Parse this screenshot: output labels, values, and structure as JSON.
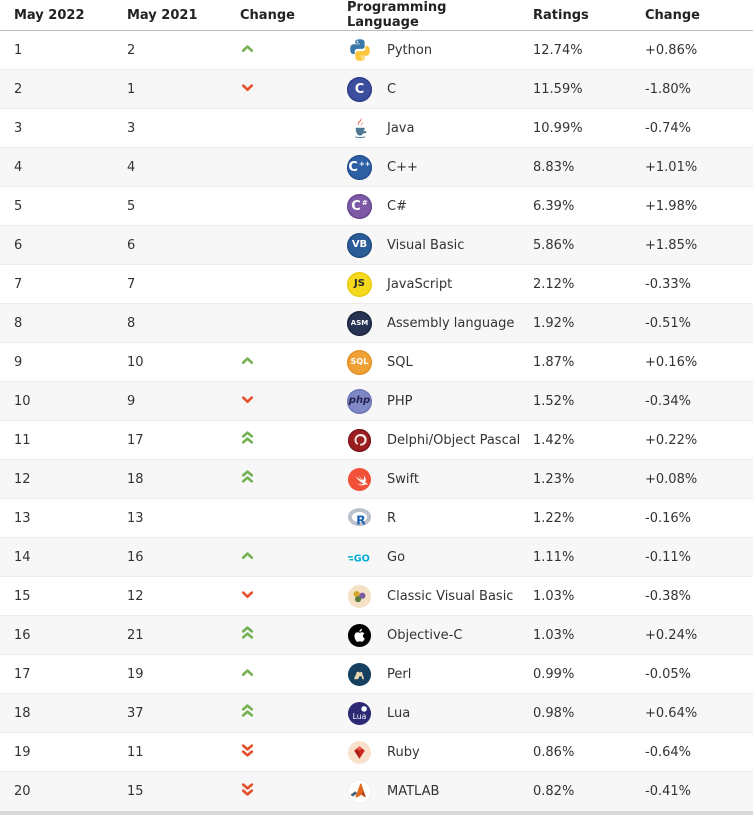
{
  "colors": {
    "arrow_up": "#74b152",
    "arrow_down": "#e2512c",
    "row_alt_bg": "#f7f7f7",
    "header_border": "#bdbdbd"
  },
  "table": {
    "columns": [
      "May 2022",
      "May 2021",
      "Change",
      "Programming Language",
      "Ratings",
      "Change"
    ],
    "rows": [
      {
        "rank_may_2022": "1",
        "rank_may_2021": "2",
        "change_arrow": "up",
        "icon": "python",
        "language": "Python",
        "ratings": "12.74%",
        "change": "+0.86%"
      },
      {
        "rank_may_2022": "2",
        "rank_may_2021": "1",
        "change_arrow": "down",
        "icon": "c",
        "language": "C",
        "ratings": "11.59%",
        "change": "-1.80%"
      },
      {
        "rank_may_2022": "3",
        "rank_may_2021": "3",
        "change_arrow": "",
        "icon": "java",
        "language": "Java",
        "ratings": "10.99%",
        "change": "-0.74%"
      },
      {
        "rank_may_2022": "4",
        "rank_may_2021": "4",
        "change_arrow": "",
        "icon": "cpp",
        "language": "C++",
        "ratings": "8.83%",
        "change": "+1.01%"
      },
      {
        "rank_may_2022": "5",
        "rank_may_2021": "5",
        "change_arrow": "",
        "icon": "csharp",
        "language": "C#",
        "ratings": "6.39%",
        "change": "+1.98%"
      },
      {
        "rank_may_2022": "6",
        "rank_may_2021": "6",
        "change_arrow": "",
        "icon": "vb",
        "language": "Visual Basic",
        "ratings": "5.86%",
        "change": "+1.85%"
      },
      {
        "rank_may_2022": "7",
        "rank_may_2021": "7",
        "change_arrow": "",
        "icon": "js",
        "language": "JavaScript",
        "ratings": "2.12%",
        "change": "-0.33%"
      },
      {
        "rank_may_2022": "8",
        "rank_may_2021": "8",
        "change_arrow": "",
        "icon": "asm",
        "language": "Assembly language",
        "ratings": "1.92%",
        "change": "-0.51%"
      },
      {
        "rank_may_2022": "9",
        "rank_may_2021": "10",
        "change_arrow": "up",
        "icon": "sql",
        "language": "SQL",
        "ratings": "1.87%",
        "change": "+0.16%"
      },
      {
        "rank_may_2022": "10",
        "rank_may_2021": "9",
        "change_arrow": "down",
        "icon": "php",
        "language": "PHP",
        "ratings": "1.52%",
        "change": "-0.34%"
      },
      {
        "rank_may_2022": "11",
        "rank_may_2021": "17",
        "change_arrow": "double-up",
        "icon": "delphi",
        "language": "Delphi/Object Pascal",
        "ratings": "1.42%",
        "change": "+0.22%"
      },
      {
        "rank_may_2022": "12",
        "rank_may_2021": "18",
        "change_arrow": "double-up",
        "icon": "swift",
        "language": "Swift",
        "ratings": "1.23%",
        "change": "+0.08%"
      },
      {
        "rank_may_2022": "13",
        "rank_may_2021": "13",
        "change_arrow": "",
        "icon": "r",
        "language": "R",
        "ratings": "1.22%",
        "change": "-0.16%"
      },
      {
        "rank_may_2022": "14",
        "rank_may_2021": "16",
        "change_arrow": "up",
        "icon": "go",
        "language": "Go",
        "ratings": "1.11%",
        "change": "-0.11%"
      },
      {
        "rank_may_2022": "15",
        "rank_may_2021": "12",
        "change_arrow": "down",
        "icon": "classicvb",
        "language": "Classic Visual Basic",
        "ratings": "1.03%",
        "change": "-0.38%"
      },
      {
        "rank_may_2022": "16",
        "rank_may_2021": "21",
        "change_arrow": "double-up",
        "icon": "objc",
        "language": "Objective-C",
        "ratings": "1.03%",
        "change": "+0.24%"
      },
      {
        "rank_may_2022": "17",
        "rank_may_2021": "19",
        "change_arrow": "up",
        "icon": "perl",
        "language": "Perl",
        "ratings": "0.99%",
        "change": "-0.05%"
      },
      {
        "rank_may_2022": "18",
        "rank_may_2021": "37",
        "change_arrow": "double-up",
        "icon": "lua",
        "language": "Lua",
        "ratings": "0.98%",
        "change": "+0.64%"
      },
      {
        "rank_may_2022": "19",
        "rank_may_2021": "11",
        "change_arrow": "double-down",
        "icon": "ruby",
        "language": "Ruby",
        "ratings": "0.86%",
        "change": "-0.64%"
      },
      {
        "rank_may_2022": "20",
        "rank_may_2021": "15",
        "change_arrow": "double-down",
        "icon": "matlab",
        "language": "MATLAB",
        "ratings": "0.82%",
        "change": "-0.41%"
      }
    ]
  }
}
